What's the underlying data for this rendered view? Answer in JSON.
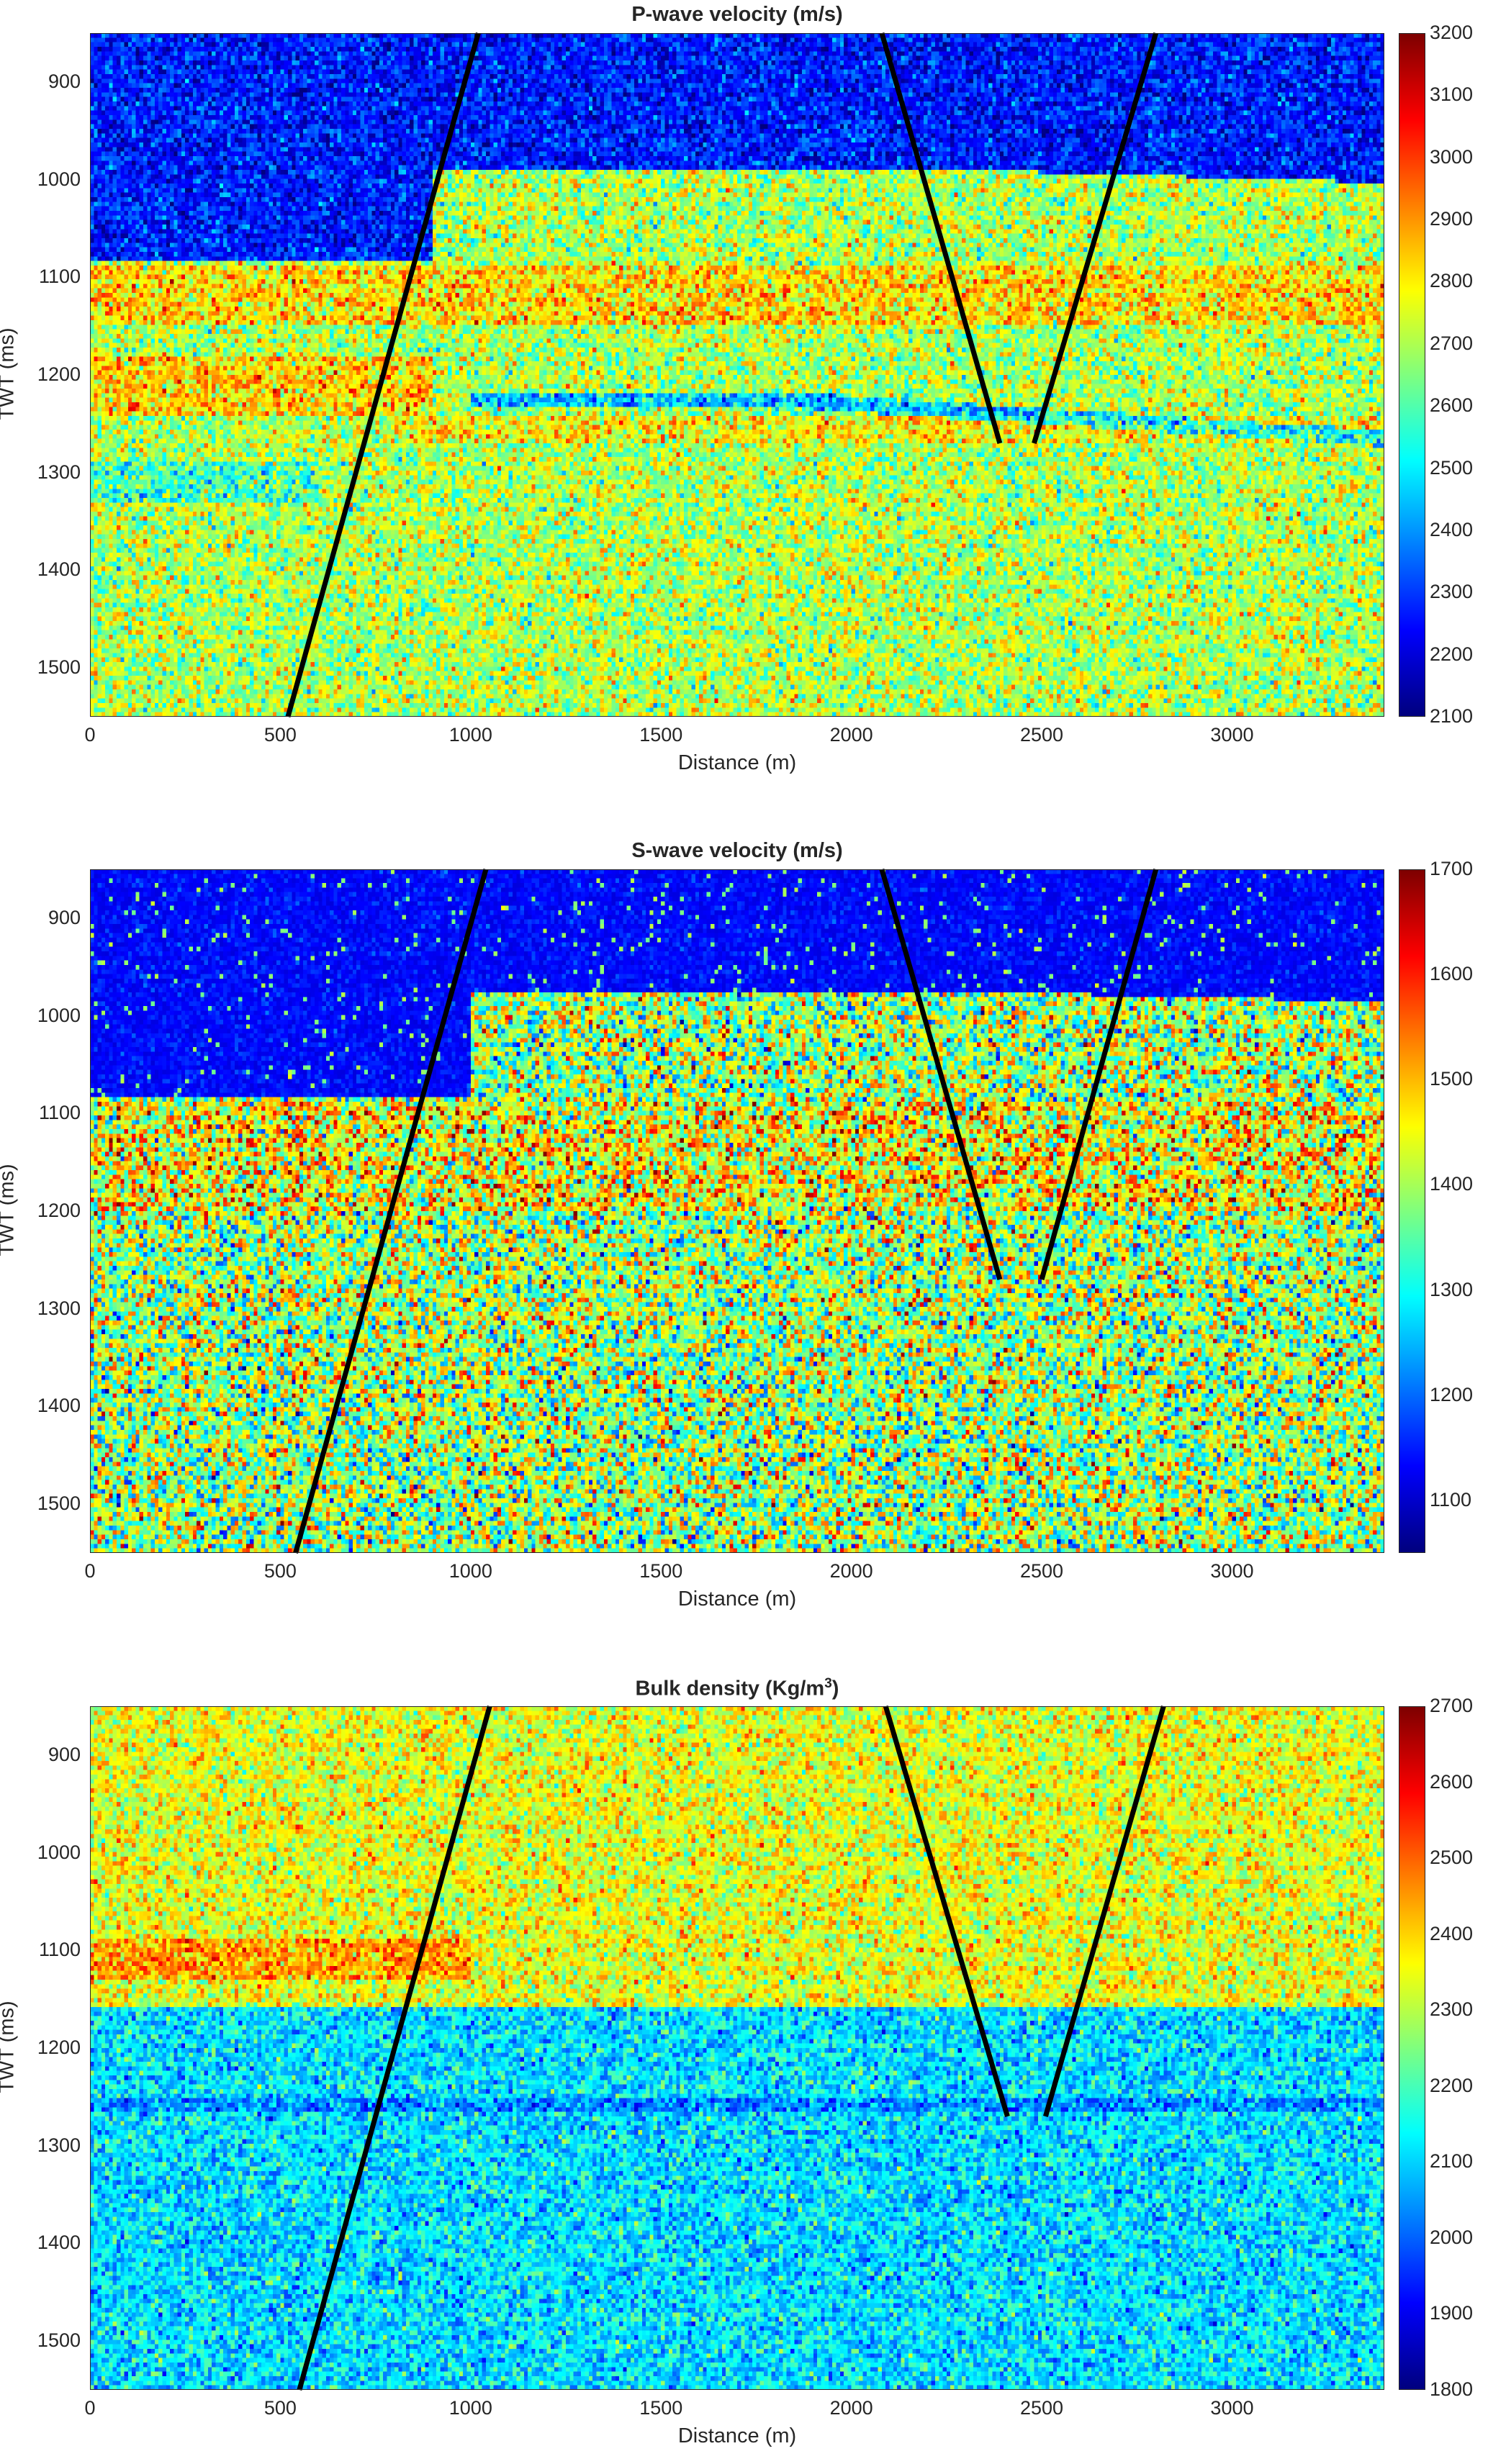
{
  "chart_data": [
    {
      "type": "heatmap",
      "title": "P-wave velocity (m/s)",
      "title_sup": "",
      "xlabel": "Distance (m)",
      "ylabel": "TWT (ms)",
      "xlim": [
        0,
        3400
      ],
      "ylim": [
        850,
        1550
      ],
      "xticks": [
        0,
        500,
        1000,
        1500,
        2000,
        2500,
        3000
      ],
      "yticks": [
        900,
        1000,
        1100,
        1200,
        1300,
        1400,
        1500
      ],
      "colormap": "jet",
      "clim": [
        2100,
        3200
      ],
      "cticks": [
        2100,
        2200,
        2300,
        2400,
        2500,
        2600,
        2700,
        2800,
        2900,
        3000,
        3100,
        3200
      ],
      "model": "p",
      "faults": [
        [
          [
            1020,
            850
          ],
          [
            520,
            1550
          ]
        ],
        [
          [
            2080,
            850
          ],
          [
            2390,
            1270
          ]
        ],
        [
          [
            2800,
            850
          ],
          [
            2480,
            1270
          ]
        ]
      ]
    },
    {
      "type": "heatmap",
      "title": "S-wave velocity (m/s)",
      "title_sup": "",
      "xlabel": "Distance (m)",
      "ylabel": "TWT (ms)",
      "xlim": [
        0,
        3400
      ],
      "ylim": [
        850,
        1550
      ],
      "xticks": [
        0,
        500,
        1000,
        1500,
        2000,
        2500,
        3000
      ],
      "yticks": [
        900,
        1000,
        1100,
        1200,
        1300,
        1400,
        1500
      ],
      "colormap": "jet",
      "clim": [
        1050,
        1700
      ],
      "cticks": [
        1100,
        1200,
        1300,
        1400,
        1500,
        1600,
        1700
      ],
      "model": "s",
      "faults": [
        [
          [
            1040,
            850
          ],
          [
            540,
            1550
          ]
        ],
        [
          [
            2080,
            850
          ],
          [
            2390,
            1270
          ]
        ],
        [
          [
            2800,
            850
          ],
          [
            2500,
            1270
          ]
        ]
      ]
    },
    {
      "type": "heatmap",
      "title": "Bulk density (Kg/m",
      "title_sup": "3",
      "title_end": ")",
      "xlabel": "Distance (m)",
      "ylabel": "TWT (ms)",
      "xlim": [
        0,
        3400
      ],
      "ylim": [
        850,
        1550
      ],
      "xticks": [
        0,
        500,
        1000,
        1500,
        2000,
        2500,
        3000
      ],
      "yticks": [
        900,
        1000,
        1100,
        1200,
        1300,
        1400,
        1500
      ],
      "colormap": "jet",
      "clim": [
        1800,
        2700
      ],
      "cticks": [
        1800,
        1900,
        2000,
        2100,
        2200,
        2300,
        2400,
        2500,
        2600,
        2700
      ],
      "model": "d",
      "faults": [
        [
          [
            1050,
            850
          ],
          [
            550,
            1550
          ]
        ],
        [
          [
            2090,
            850
          ],
          [
            2410,
            1270
          ]
        ],
        [
          [
            2820,
            850
          ],
          [
            2510,
            1270
          ]
        ]
      ]
    }
  ]
}
